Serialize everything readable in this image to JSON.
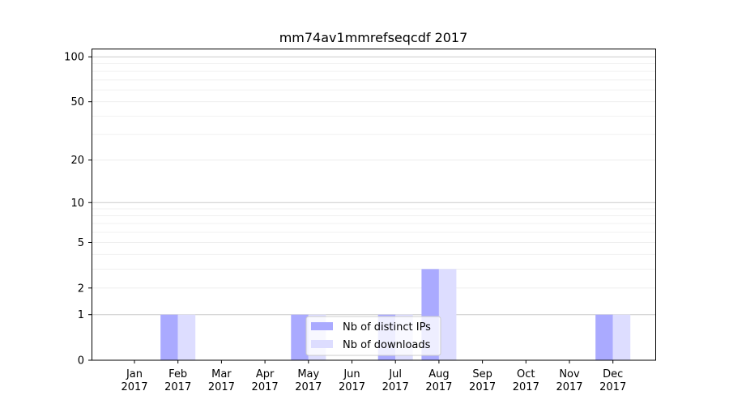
{
  "chart_data": {
    "type": "bar",
    "title": "mm74av1mmrefseqcdf 2017",
    "xlabel": "",
    "ylabel": "",
    "yscale": "log(1+y)",
    "ylim": [
      0,
      113
    ],
    "yticks": [
      0,
      1,
      2,
      5,
      10,
      20,
      50,
      100
    ],
    "ytick_labels": [
      "0",
      "1",
      "2",
      "5",
      "10",
      "20",
      "50",
      "100"
    ],
    "grid": true,
    "legend_position": "lower-center",
    "categories": [
      [
        "Jan",
        "2017"
      ],
      [
        "Feb",
        "2017"
      ],
      [
        "Mar",
        "2017"
      ],
      [
        "Apr",
        "2017"
      ],
      [
        "May",
        "2017"
      ],
      [
        "Jun",
        "2017"
      ],
      [
        "Jul",
        "2017"
      ],
      [
        "Aug",
        "2017"
      ],
      [
        "Sep",
        "2017"
      ],
      [
        "Oct",
        "2017"
      ],
      [
        "Nov",
        "2017"
      ],
      [
        "Dec",
        "2017"
      ]
    ],
    "series": [
      {
        "name": "Nb of distinct IPs",
        "color": "#aaaaff",
        "values": [
          0,
          1,
          0,
          0,
          1,
          0,
          1,
          3,
          0,
          0,
          0,
          1
        ]
      },
      {
        "name": "Nb of downloads",
        "color": "#ddddff",
        "values": [
          0,
          1,
          0,
          0,
          1,
          0,
          1,
          3,
          0,
          0,
          0,
          1
        ]
      }
    ]
  }
}
